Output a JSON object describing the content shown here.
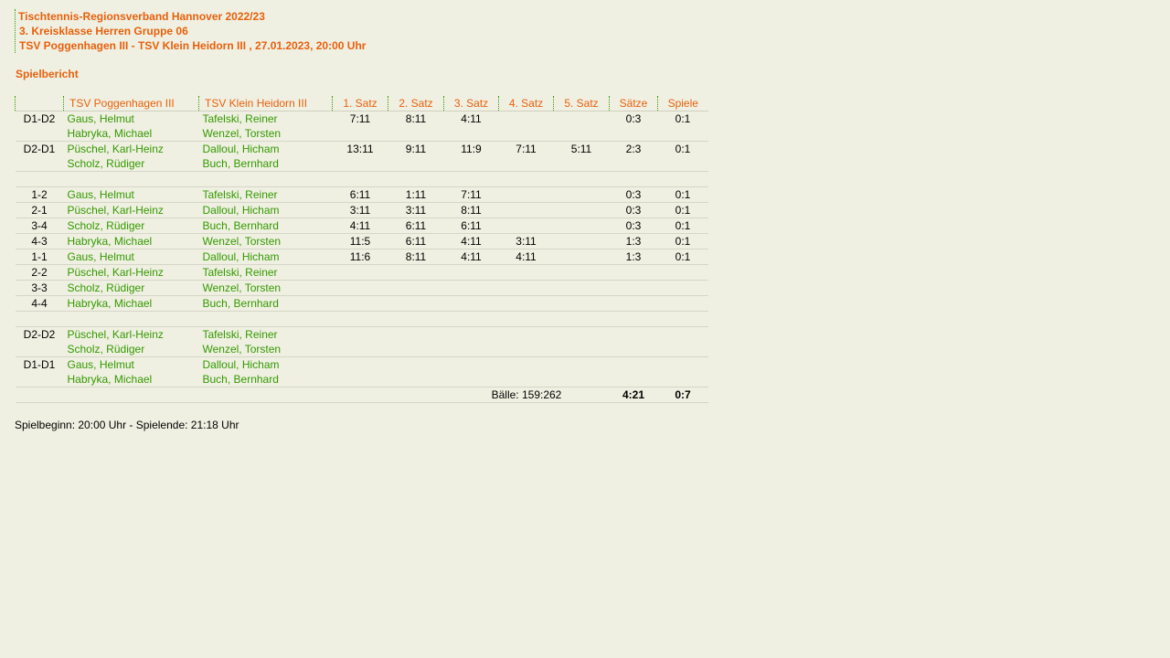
{
  "header": {
    "line1": "Tischtennis-Regionsverband Hannover 2022/23",
    "line2": "3. Kreisklasse Herren Gruppe 06",
    "line3": "TSV Poggenhagen III - TSV Klein Heidorn III , 27.01.2023, 20:00 Uhr"
  },
  "section_title": "Spielbericht",
  "columns": [
    "",
    "TSV Poggenhagen III",
    "TSV Klein Heidorn III",
    "1. Satz",
    "2. Satz",
    "3. Satz",
    "4. Satz",
    "5. Satz",
    "Sätze",
    "Spiele"
  ],
  "rows": [
    {
      "pair": "D1-D2",
      "home": [
        "Gaus, Helmut",
        "Habryka, Michael"
      ],
      "away": [
        "Tafelski, Reiner",
        "Wenzel, Torsten"
      ],
      "sets": [
        "7:11",
        "8:11",
        "4:11",
        "",
        ""
      ],
      "saetze": "0:3",
      "spiele": "0:1"
    },
    {
      "pair": "D2-D1",
      "home": [
        "Püschel, Karl-Heinz",
        "Scholz, Rüdiger"
      ],
      "away": [
        "Dalloul, Hicham",
        "Buch, Bernhard"
      ],
      "sets": [
        "13:11",
        "9:11",
        "11:9",
        "7:11",
        "5:11"
      ],
      "saetze": "2:3",
      "spiele": "0:1"
    },
    {
      "gap": true
    },
    {
      "pair": "1-2",
      "home": [
        "Gaus, Helmut"
      ],
      "away": [
        "Tafelski, Reiner"
      ],
      "sets": [
        "6:11",
        "1:11",
        "7:11",
        "",
        ""
      ],
      "saetze": "0:3",
      "spiele": "0:1"
    },
    {
      "pair": "2-1",
      "home": [
        "Püschel, Karl-Heinz"
      ],
      "away": [
        "Dalloul, Hicham"
      ],
      "sets": [
        "3:11",
        "3:11",
        "8:11",
        "",
        ""
      ],
      "saetze": "0:3",
      "spiele": "0:1"
    },
    {
      "pair": "3-4",
      "home": [
        "Scholz, Rüdiger"
      ],
      "away": [
        "Buch, Bernhard"
      ],
      "sets": [
        "4:11",
        "6:11",
        "6:11",
        "",
        ""
      ],
      "saetze": "0:3",
      "spiele": "0:1"
    },
    {
      "pair": "4-3",
      "home": [
        "Habryka, Michael"
      ],
      "away": [
        "Wenzel, Torsten"
      ],
      "sets": [
        "11:5",
        "6:11",
        "4:11",
        "3:11",
        ""
      ],
      "saetze": "1:3",
      "spiele": "0:1"
    },
    {
      "pair": "1-1",
      "home": [
        "Gaus, Helmut"
      ],
      "away": [
        "Dalloul, Hicham"
      ],
      "sets": [
        "11:6",
        "8:11",
        "4:11",
        "4:11",
        ""
      ],
      "saetze": "1:3",
      "spiele": "0:1"
    },
    {
      "pair": "2-2",
      "home": [
        "Püschel, Karl-Heinz"
      ],
      "away": [
        "Tafelski, Reiner"
      ],
      "sets": [
        "",
        "",
        "",
        "",
        ""
      ],
      "saetze": "",
      "spiele": ""
    },
    {
      "pair": "3-3",
      "home": [
        "Scholz, Rüdiger"
      ],
      "away": [
        "Wenzel, Torsten"
      ],
      "sets": [
        "",
        "",
        "",
        "",
        ""
      ],
      "saetze": "",
      "spiele": ""
    },
    {
      "pair": "4-4",
      "home": [
        "Habryka, Michael"
      ],
      "away": [
        "Buch, Bernhard"
      ],
      "sets": [
        "",
        "",
        "",
        "",
        ""
      ],
      "saetze": "",
      "spiele": ""
    },
    {
      "gap": true
    },
    {
      "pair": "D2-D2",
      "home": [
        "Püschel, Karl-Heinz",
        "Scholz, Rüdiger"
      ],
      "away": [
        "Tafelski, Reiner",
        "Wenzel, Torsten"
      ],
      "sets": [
        "",
        "",
        "",
        "",
        ""
      ],
      "saetze": "",
      "spiele": ""
    },
    {
      "pair": "D1-D1",
      "home": [
        "Gaus, Helmut",
        "Habryka, Michael"
      ],
      "away": [
        "Dalloul, Hicham",
        "Buch, Bernhard"
      ],
      "sets": [
        "",
        "",
        "",
        "",
        ""
      ],
      "saetze": "",
      "spiele": ""
    }
  ],
  "totals": {
    "balls": "Bälle: 159:262",
    "saetze": "4:21",
    "spiele": "0:7"
  },
  "footer": "Spielbeginn: 20:00 Uhr - Spielende: 21:18 Uhr",
  "colors": {
    "accent": "#e8600c",
    "names": "#339900",
    "background": "#f0f0e2"
  }
}
